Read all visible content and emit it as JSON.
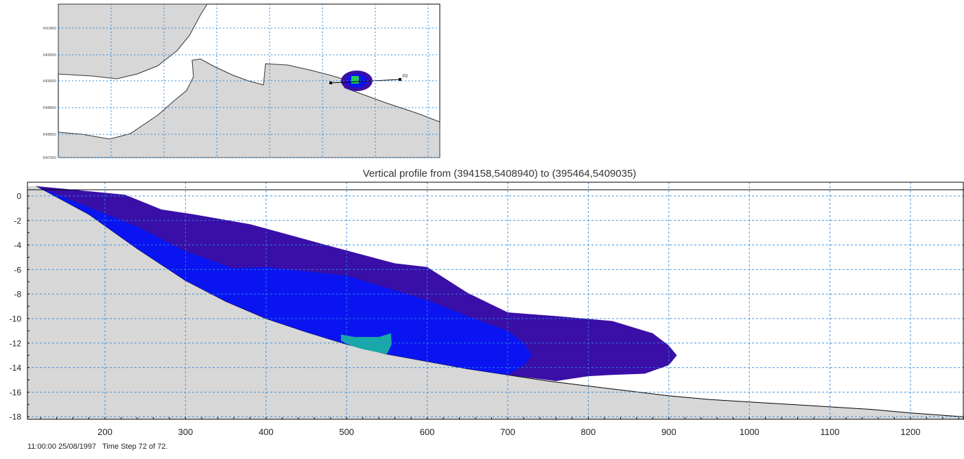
{
  "map": {
    "y_tick_labels": [
      "5410000",
      "5409500",
      "5409000",
      "5408500",
      "5408000",
      "5407500"
    ],
    "point_label": "P2"
  },
  "chart_data": {
    "type": "area",
    "title": "Vertical profile from (394158,5408940) to (395464,5409035)",
    "xlabel": "",
    "ylabel": "",
    "xlim": [
      110,
      1265
    ],
    "ylim": [
      -18.3,
      1
    ],
    "x_ticks": [
      200,
      300,
      400,
      500,
      600,
      700,
      800,
      900,
      1000,
      1100,
      1200
    ],
    "y_ticks": [
      0,
      -2,
      -4,
      -6,
      -8,
      -10,
      -12,
      -14,
      -16,
      -18
    ],
    "grid": true,
    "seabed": {
      "name": "",
      "x": [
        115,
        180,
        240,
        300,
        350,
        400,
        450,
        500,
        550,
        600,
        650,
        700,
        750,
        800,
        850,
        900,
        950,
        1000,
        1050,
        1100,
        1150,
        1200,
        1265
      ],
      "y": [
        0.8,
        -1.5,
        -4.3,
        -6.9,
        -8.6,
        -10.0,
        -11.1,
        -12.1,
        -12.9,
        -13.5,
        -14.1,
        -14.6,
        -15.1,
        -15.5,
        -15.9,
        -16.3,
        -16.6,
        -16.8,
        -17.0,
        -17.2,
        -17.4,
        -17.7,
        -18.0
      ]
    },
    "series": [
      {
        "name": "",
        "color": "#3a0fa8",
        "x": [
          115,
          225,
          270,
          310,
          380,
          430,
          480,
          560,
          600,
          650,
          700,
          760,
          830,
          880,
          900,
          910,
          900,
          870,
          830,
          800,
          760,
          700,
          650,
          600,
          550,
          500,
          450,
          400,
          350,
          300,
          240,
          180,
          115
        ],
        "y": [
          0.8,
          0.1,
          -1.1,
          -1.5,
          -2.3,
          -3.2,
          -4.1,
          -5.5,
          -5.8,
          -7.9,
          -9.5,
          -9.8,
          -10.2,
          -11.2,
          -12.2,
          -13.0,
          -13.8,
          -14.5,
          -14.6,
          -14.7,
          -15.1,
          -14.6,
          -14.1,
          -13.5,
          -12.9,
          -12.1,
          -11.1,
          -10.0,
          -8.6,
          -6.9,
          -4.3,
          -1.5,
          0.8
        ]
      },
      {
        "name": "",
        "color": "#0a14f0",
        "x": [
          115,
          240,
          300,
          360,
          400,
          500,
          600,
          650,
          700,
          720,
          730,
          720,
          700,
          650,
          600,
          550,
          500,
          450,
          400,
          350,
          300,
          240,
          180,
          115
        ],
        "y": [
          0.8,
          -2.5,
          -4.5,
          -5.9,
          -5.8,
          -6.5,
          -8.5,
          -9.8,
          -11.0,
          -12.0,
          -13.0,
          -13.8,
          -14.6,
          -14.1,
          -13.5,
          -12.9,
          -12.1,
          -11.1,
          -10.0,
          -8.6,
          -6.9,
          -4.3,
          -1.5,
          0.8
        ]
      },
      {
        "name": "",
        "color": "#1aa8a8",
        "x": [
          493,
          510,
          540,
          555,
          556,
          550,
          520,
          505,
          493
        ],
        "y": [
          -11.3,
          -11.5,
          -11.5,
          -11.2,
          -12.1,
          -12.9,
          -12.5,
          -12.2,
          -11.8
        ]
      }
    ]
  },
  "status": {
    "datetime": "11:00:00 25/08/1997",
    "time_step": "Time Step 72 of 72."
  }
}
